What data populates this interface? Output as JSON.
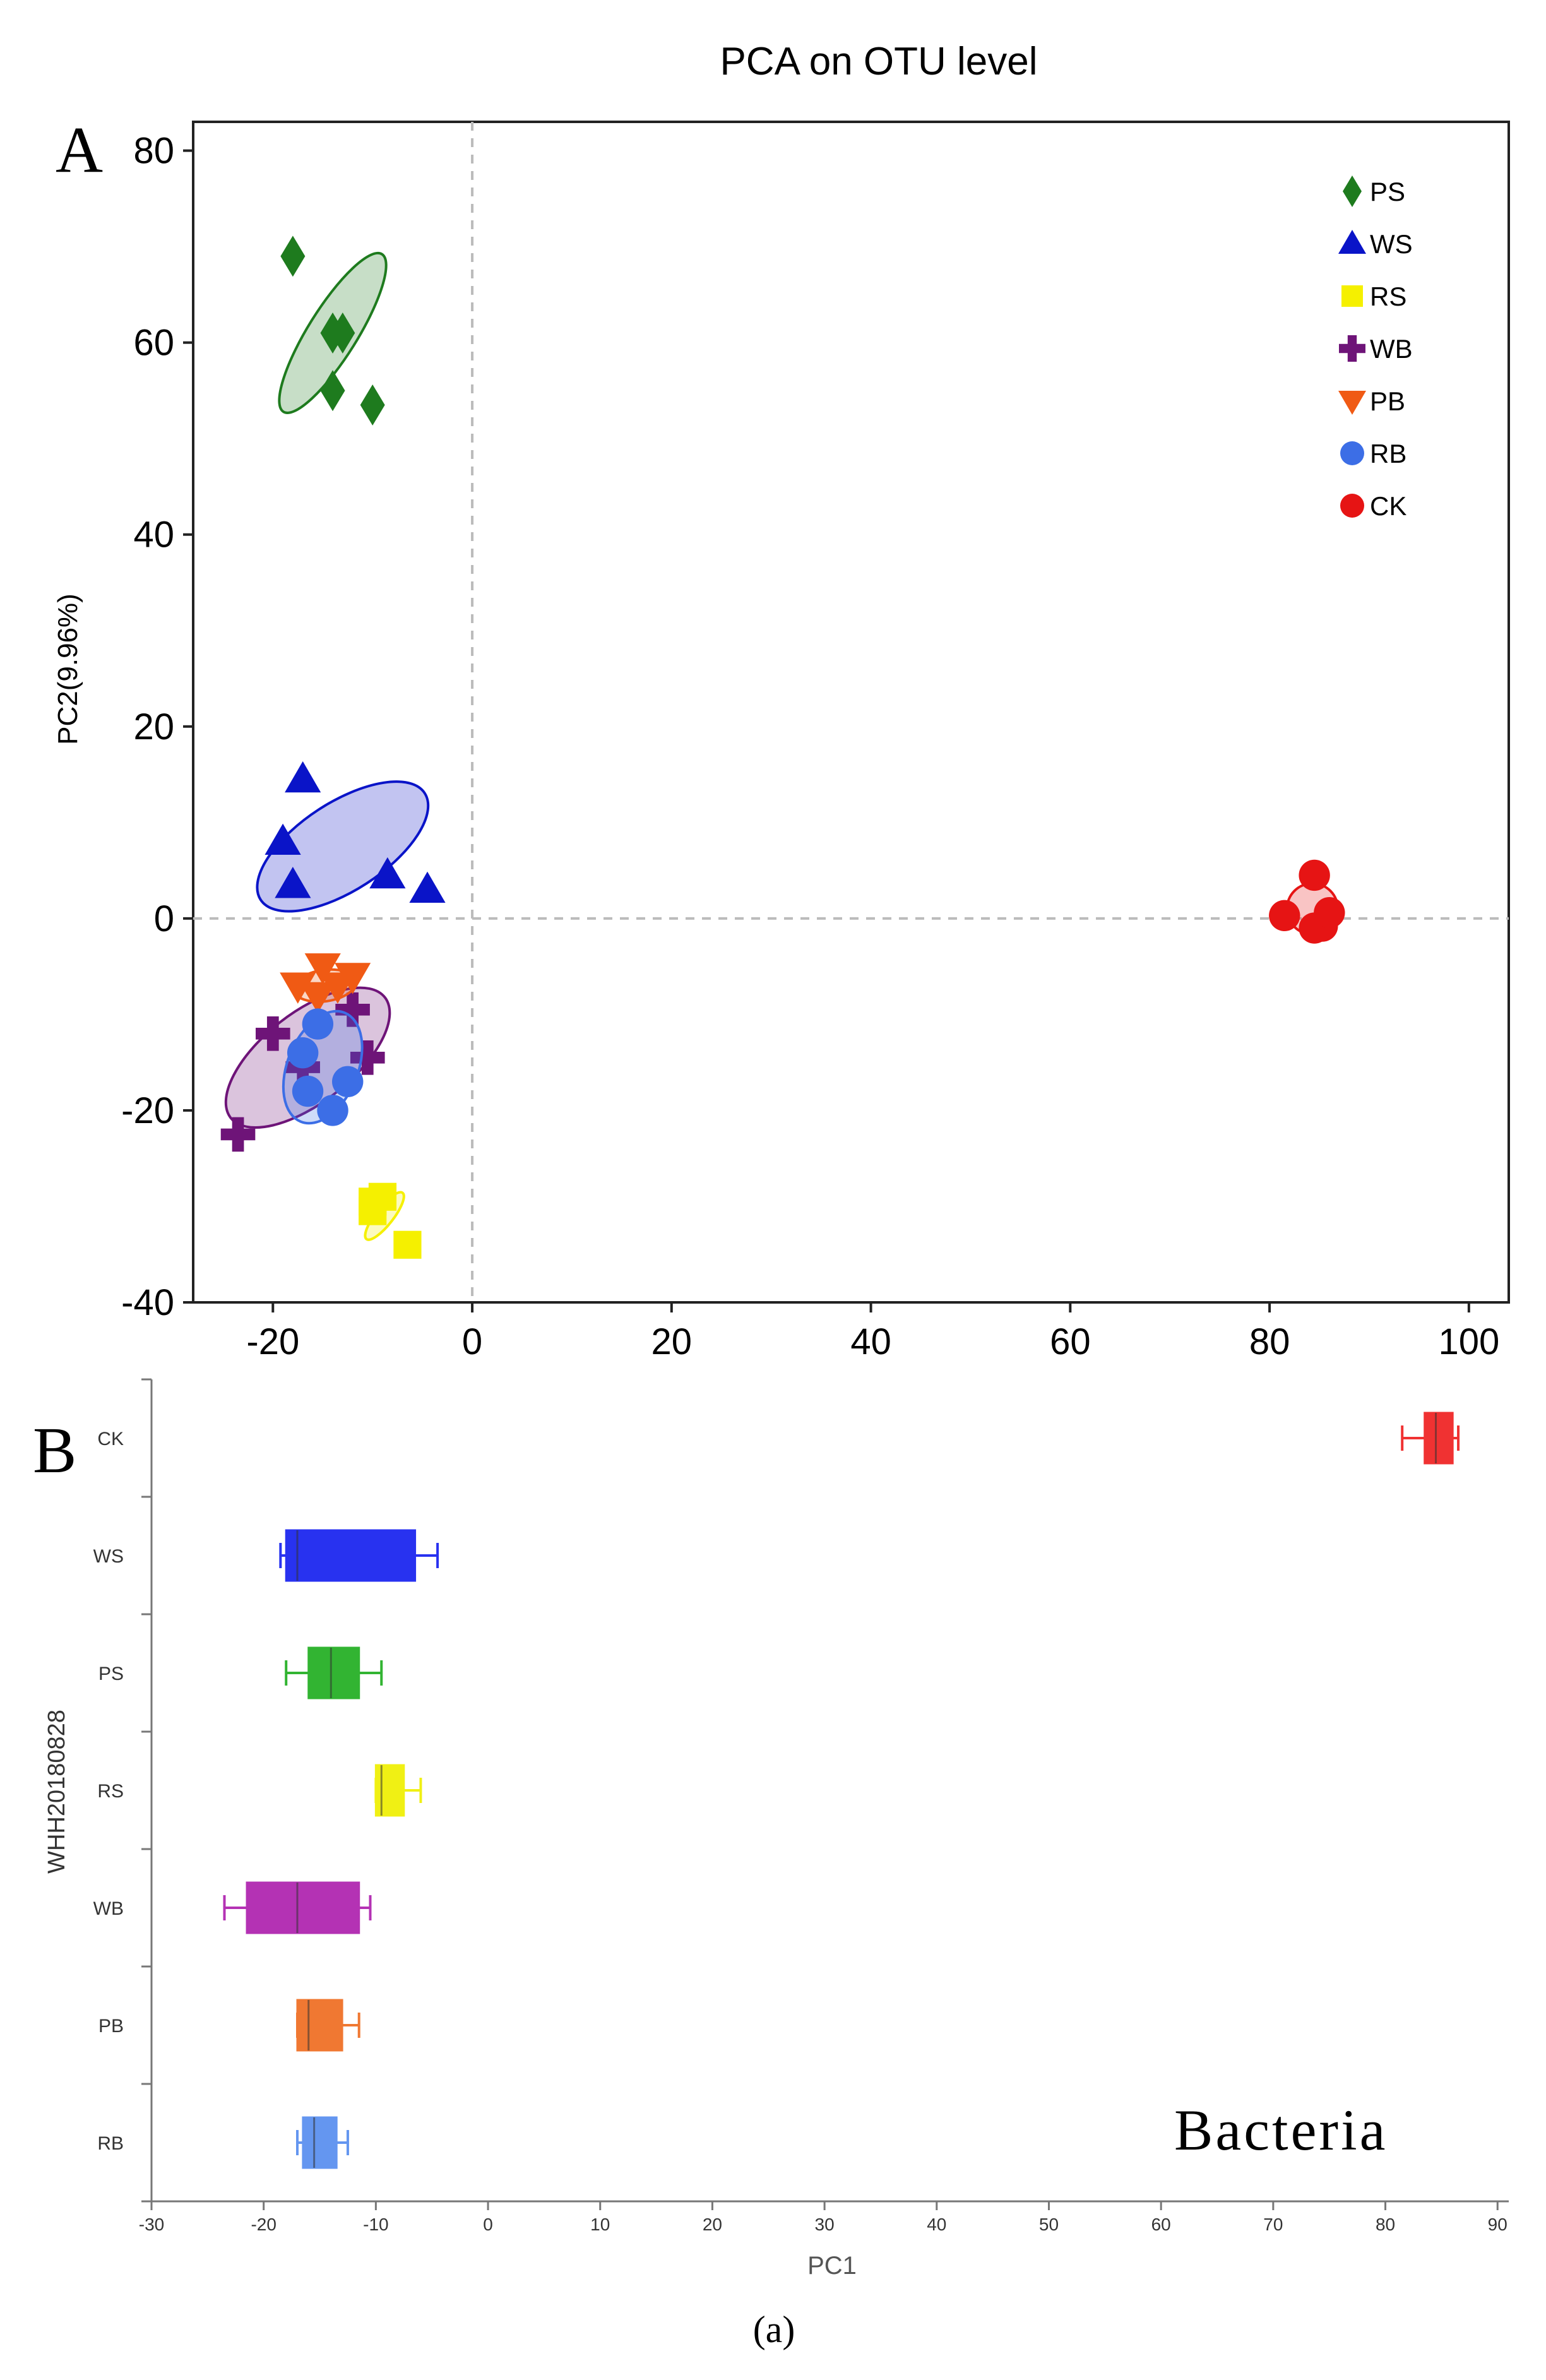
{
  "chart_data": [
    {
      "type": "scatter",
      "panel_label": "A",
      "title": "PCA on OTU level",
      "xlabel": "",
      "ylabel": "PC2(9.96%)",
      "xlim": [
        -28,
        104
      ],
      "ylim": [
        -40,
        83
      ],
      "xticks": [
        -20,
        0,
        20,
        40,
        60,
        80,
        100
      ],
      "yticks": [
        -40,
        -20,
        0,
        20,
        40,
        60,
        80
      ],
      "reference_lines": "dashed at x=0 and y=0",
      "legend_position": "top-right",
      "series": [
        {
          "name": "PS",
          "marker": "diamond",
          "color": "#1e7b1e",
          "points": [
            [
              -18,
              69
            ],
            [
              -14,
              61
            ],
            [
              -13,
              61
            ],
            [
              -14,
              55
            ],
            [
              -10,
              53.5
            ]
          ],
          "ellipse": {
            "cx": -14,
            "cy": 61,
            "rx": 9.5,
            "ry": 2.5,
            "angle": -58
          }
        },
        {
          "name": "WS",
          "marker": "triangle",
          "color": "#0a14c8",
          "points": [
            [
              -17,
              14.5
            ],
            [
              -19,
              8
            ],
            [
              -18,
              3.5
            ],
            [
              -8.5,
              4.5
            ],
            [
              -4.5,
              3
            ]
          ],
          "ellipse": {
            "cx": -13,
            "cy": 7.5,
            "rx": 10,
            "ry": 4.5,
            "angle": -33
          }
        },
        {
          "name": "RS",
          "marker": "square",
          "color": "#f5f000",
          "points": [
            [
              -10,
              -29.5
            ],
            [
              -9,
              -29
            ],
            [
              -10,
              -30.5
            ],
            [
              -6.5,
              -34
            ]
          ],
          "ellipse": {
            "cx": -8.8,
            "cy": -31,
            "rx": 3,
            "ry": 0.9,
            "angle": -52
          }
        },
        {
          "name": "WB",
          "marker": "plus",
          "color": "#6e1478",
          "points": [
            [
              -12,
              -9.5
            ],
            [
              -10.5,
              -14.5
            ],
            [
              -20,
              -12
            ],
            [
              -17,
              -15.5
            ],
            [
              -23.5,
              -22.5
            ]
          ],
          "ellipse": {
            "cx": -16.5,
            "cy": -14.5,
            "rx": 10,
            "ry": 4.6,
            "angle": -38
          }
        },
        {
          "name": "PB",
          "marker": "triangle-down",
          "color": "#f05a14",
          "points": [
            [
              -15,
              -5
            ],
            [
              -12,
              -6
            ],
            [
              -17.5,
              -7
            ],
            [
              -15.5,
              -8
            ],
            [
              -13.5,
              -7
            ]
          ],
          "ellipse": {
            "cx": -14.8,
            "cy": -7,
            "rx": 3.2,
            "ry": 1.6,
            "angle": -8
          }
        },
        {
          "name": "RB",
          "marker": "circle",
          "color": "#3c6ee6",
          "points": [
            [
              -15.5,
              -11
            ],
            [
              -17,
              -14
            ],
            [
              -16.5,
              -18
            ],
            [
              -12.5,
              -17
            ],
            [
              -14,
              -20
            ]
          ],
          "ellipse": {
            "cx": -15,
            "cy": -15.5,
            "rx": 6,
            "ry": 3.6,
            "angle": -68
          }
        },
        {
          "name": "CK",
          "marker": "circle",
          "color": "#e61414",
          "points": [
            [
              84.5,
              4.5
            ],
            [
              81.5,
              0.3
            ],
            [
              84.5,
              -1
            ],
            [
              85.3,
              -0.8
            ],
            [
              86,
              0.6
            ]
          ],
          "ellipse": {
            "cx": 84.3,
            "cy": 1,
            "rx": 2.6,
            "ry": 2.6,
            "angle": 0
          }
        }
      ]
    },
    {
      "type": "box",
      "panel_label": "B",
      "xlabel": "PC1",
      "ylabel": "WHH20180828",
      "xlim": [
        -30,
        91
      ],
      "xticks": [
        -30,
        -20,
        -10,
        0,
        10,
        20,
        30,
        40,
        50,
        60,
        70,
        80,
        90
      ],
      "annotation": "Bacteria",
      "categories": [
        "CK",
        "WS",
        "PS",
        "RS",
        "WB",
        "PB",
        "RB"
      ],
      "boxes": [
        {
          "name": "CK",
          "min": 81.5,
          "q1": 83.5,
          "median": 84.5,
          "q3": 86,
          "max": 86.5,
          "color": "#f03232"
        },
        {
          "name": "WS",
          "min": -18.5,
          "q1": -18,
          "median": -17,
          "q3": -6.5,
          "max": -4.5,
          "color": "#2832f0"
        },
        {
          "name": "PS",
          "min": -18,
          "q1": -16,
          "median": -14,
          "q3": -11.5,
          "max": -9.5,
          "color": "#32b432"
        },
        {
          "name": "RS",
          "min": -10,
          "q1": -10,
          "median": -9.5,
          "q3": -7.5,
          "max": -6,
          "color": "#f0f014"
        },
        {
          "name": "WB",
          "min": -23.5,
          "q1": -21.5,
          "median": -17,
          "q3": -11.5,
          "max": -10.5,
          "color": "#b432b4"
        },
        {
          "name": "PB",
          "min": -17,
          "q1": -17,
          "median": -16,
          "q3": -13,
          "max": -11.5,
          "color": "#f07832"
        },
        {
          "name": "RB",
          "min": -17,
          "q1": -16.5,
          "median": -15.5,
          "q3": -13.5,
          "max": -12.5,
          "color": "#6496f0"
        }
      ]
    }
  ],
  "caption": "(a)"
}
